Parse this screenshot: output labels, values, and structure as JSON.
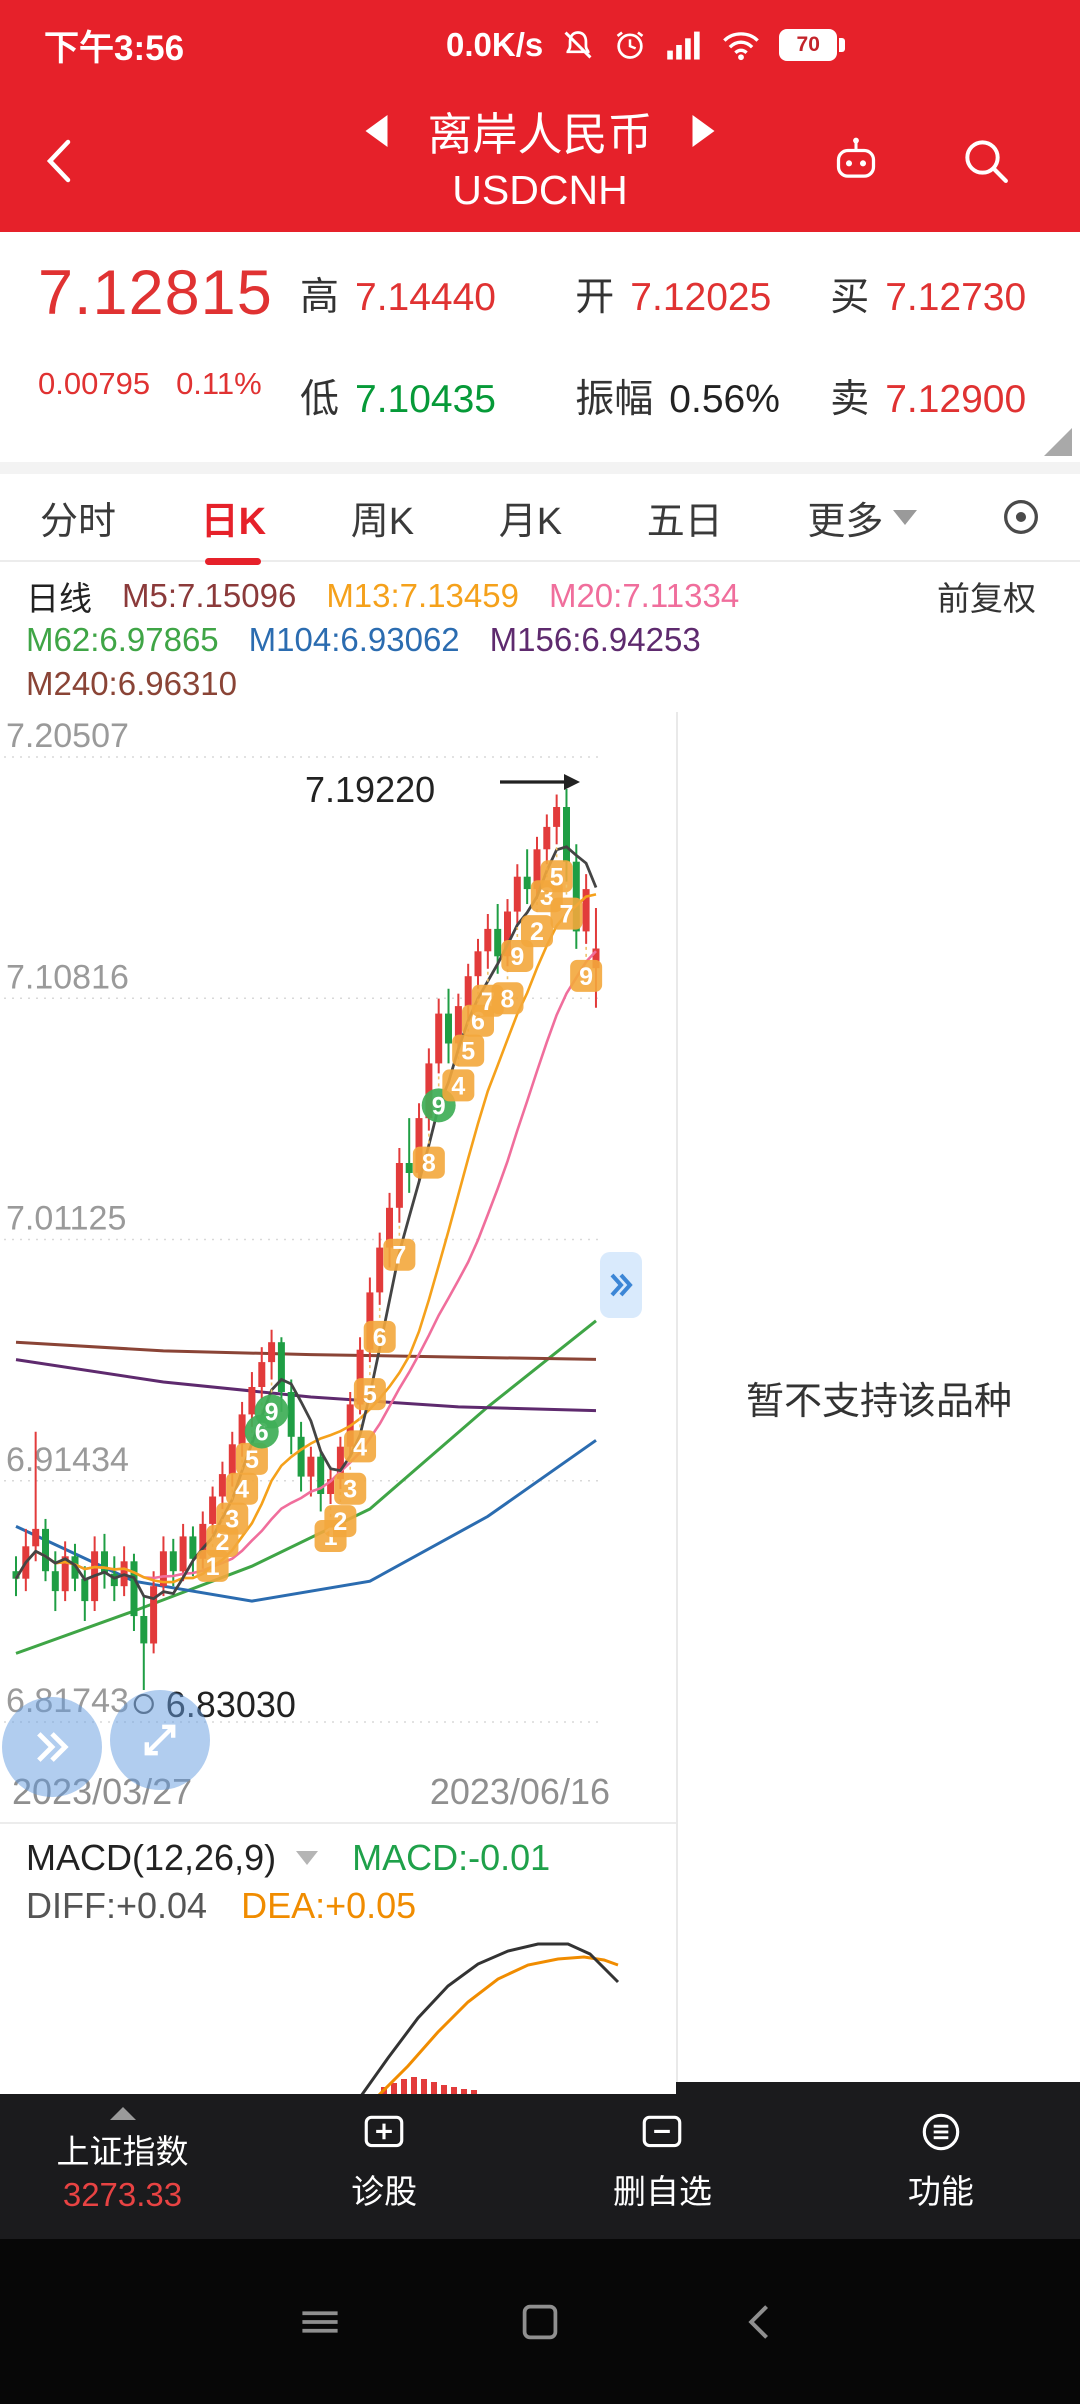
{
  "status_bar": {
    "time": "下午3:56",
    "net_speed": "0.0K/s",
    "battery_level": "70"
  },
  "header": {
    "title": "离岸人民币",
    "symbol": "USDCNH"
  },
  "quote": {
    "price": "7.12815",
    "change": "0.00795",
    "change_pct": "0.11%",
    "fields": [
      {
        "label": "高",
        "value": "7.14440",
        "color": "red"
      },
      {
        "label": "开",
        "value": "7.12025",
        "color": "red"
      },
      {
        "label": "买",
        "value": "7.12730",
        "color": "red"
      },
      {
        "label": "低",
        "value": "7.10435",
        "color": "green"
      },
      {
        "label": "振幅",
        "value": "0.56%",
        "color": "black"
      },
      {
        "label": "卖",
        "value": "7.12900",
        "color": "red"
      }
    ]
  },
  "tabs": {
    "items": [
      "分时",
      "日K",
      "周K",
      "月K",
      "五日",
      "更多"
    ],
    "active": "日K"
  },
  "indicators": {
    "period_label": "日线",
    "m5": "M5:7.15096",
    "m13": "M13:7.13459",
    "m20": "M20:7.11334",
    "adjust_label": "前复权",
    "m62": "M62:6.97865",
    "m104": "M104:6.93062",
    "m156": "M156:6.94253",
    "m240": "M240:6.96310"
  },
  "right_panel": {
    "message": "暂不支持该品种"
  },
  "chart_data": {
    "type": "candlestick",
    "symbol": "USDCNH",
    "period": "daily",
    "x_axis": {
      "start": "2023/03/27",
      "end": "2023/06/16"
    },
    "y_ticks": [
      7.20507,
      7.10816,
      7.01125,
      6.91434,
      6.81743
    ],
    "annotations": {
      "high_label": "7.19220",
      "low_label": "6.83030"
    },
    "colors": {
      "up": "#e23b3b",
      "down": "#1f9e44",
      "m5": "#444444",
      "m13": "#f5a11b",
      "m20": "#f06e9c"
    },
    "candles": [
      [
        6.878,
        6.884,
        6.868,
        6.875
      ],
      [
        6.875,
        6.895,
        6.87,
        6.888
      ],
      [
        6.888,
        6.934,
        6.882,
        6.895
      ],
      [
        6.895,
        6.899,
        6.874,
        6.878
      ],
      [
        6.878,
        6.886,
        6.862,
        6.87
      ],
      [
        6.87,
        6.89,
        6.866,
        6.884
      ],
      [
        6.884,
        6.889,
        6.87,
        6.875
      ],
      [
        6.875,
        6.88,
        6.858,
        6.866
      ],
      [
        6.866,
        6.892,
        6.862,
        6.886
      ],
      [
        6.886,
        6.893,
        6.871,
        6.877
      ],
      [
        6.877,
        6.884,
        6.866,
        6.872
      ],
      [
        6.872,
        6.888,
        6.868,
        6.882
      ],
      [
        6.882,
        6.885,
        6.854,
        6.86
      ],
      [
        6.86,
        6.868,
        6.8303,
        6.849
      ],
      [
        6.849,
        6.878,
        6.845,
        6.872
      ],
      [
        6.872,
        6.892,
        6.868,
        6.886
      ],
      [
        6.886,
        6.891,
        6.872,
        6.878
      ],
      [
        6.878,
        6.897,
        6.874,
        6.892
      ],
      [
        6.892,
        6.896,
        6.876,
        6.883
      ],
      [
        6.883,
        6.902,
        6.879,
        6.897
      ],
      [
        6.897,
        6.912,
        6.893,
        6.908
      ],
      [
        6.908,
        6.922,
        6.903,
        6.917
      ],
      [
        6.917,
        6.934,
        6.912,
        6.929
      ],
      [
        6.929,
        6.946,
        6.924,
        6.941
      ],
      [
        6.941,
        6.958,
        6.936,
        6.952
      ],
      [
        6.952,
        6.968,
        6.947,
        6.962
      ],
      [
        6.962,
        6.975,
        6.955,
        6.97
      ],
      [
        6.97,
        6.972,
        6.942,
        6.95
      ],
      [
        6.95,
        6.955,
        6.925,
        6.932
      ],
      [
        6.932,
        6.938,
        6.91,
        6.916
      ],
      [
        6.916,
        6.928,
        6.908,
        6.924
      ],
      [
        6.924,
        6.926,
        6.902,
        6.909
      ],
      [
        6.909,
        6.92,
        6.905,
        6.915
      ],
      [
        6.915,
        6.932,
        6.911,
        6.928
      ],
      [
        6.928,
        6.95,
        6.924,
        6.945
      ],
      [
        6.945,
        6.972,
        6.941,
        6.967
      ],
      [
        6.967,
        6.996,
        6.962,
        6.99
      ],
      [
        6.99,
        7.014,
        6.985,
        7.008
      ],
      [
        7.008,
        7.03,
        7.0,
        7.024
      ],
      [
        7.024,
        7.048,
        7.018,
        7.042
      ],
      [
        7.042,
        7.06,
        7.03,
        7.038
      ],
      [
        7.038,
        7.066,
        7.034,
        7.06
      ],
      [
        7.06,
        7.088,
        7.055,
        7.082
      ],
      [
        7.082,
        7.108,
        7.078,
        7.102
      ],
      [
        7.102,
        7.112,
        7.082,
        7.09
      ],
      [
        7.09,
        7.11,
        7.086,
        7.105
      ],
      [
        7.105,
        7.122,
        7.1,
        7.117
      ],
      [
        7.117,
        7.132,
        7.112,
        7.127
      ],
      [
        7.127,
        7.142,
        7.12,
        7.136
      ],
      [
        7.136,
        7.146,
        7.118,
        7.125
      ],
      [
        7.125,
        7.148,
        7.121,
        7.143
      ],
      [
        7.143,
        7.162,
        7.138,
        7.157
      ],
      [
        7.157,
        7.168,
        7.146,
        7.152
      ],
      [
        7.152,
        7.173,
        7.148,
        7.168
      ],
      [
        7.168,
        7.182,
        7.162,
        7.177
      ],
      [
        7.177,
        7.19,
        7.17,
        7.185
      ],
      [
        7.185,
        7.1922,
        7.155,
        7.163
      ],
      [
        7.163,
        7.17,
        7.128,
        7.135
      ],
      [
        7.135,
        7.158,
        7.13,
        7.152
      ],
      [
        7.12025,
        7.1444,
        7.10435,
        7.12815
      ]
    ],
    "ma_long": [
      {
        "name": "M62",
        "color": "#3fa546",
        "points": [
          [
            0,
            6.845
          ],
          [
            12,
            6.862
          ],
          [
            24,
            6.88
          ],
          [
            36,
            6.903
          ],
          [
            48,
            6.944
          ],
          [
            59,
            6.9786
          ]
        ]
      },
      {
        "name": "M104",
        "color": "#2b6cb0",
        "points": [
          [
            0,
            6.896
          ],
          [
            12,
            6.874
          ],
          [
            24,
            6.866
          ],
          [
            36,
            6.874
          ],
          [
            48,
            6.9
          ],
          [
            59,
            6.9306
          ]
        ]
      },
      {
        "name": "M156",
        "color": "#5e2a6e",
        "points": [
          [
            0,
            6.963
          ],
          [
            15,
            6.954
          ],
          [
            30,
            6.948
          ],
          [
            45,
            6.944
          ],
          [
            59,
            6.94253
          ]
        ]
      },
      {
        "name": "M240",
        "color": "#8a4436",
        "points": [
          [
            0,
            6.97
          ],
          [
            15,
            6.9665
          ],
          [
            30,
            6.965
          ],
          [
            45,
            6.964
          ],
          [
            59,
            6.9631
          ]
        ]
      }
    ],
    "badges": [
      [
        20,
        "1",
        "o"
      ],
      [
        21,
        "2",
        "o"
      ],
      [
        22,
        "3",
        "o"
      ],
      [
        23,
        "4",
        "o"
      ],
      [
        24,
        "5",
        "o"
      ],
      [
        25,
        "6",
        "g"
      ],
      [
        26,
        "9",
        "g"
      ],
      [
        32,
        "1",
        "o"
      ],
      [
        33,
        "2",
        "o"
      ],
      [
        34,
        "3",
        "o"
      ],
      [
        35,
        "4",
        "o"
      ],
      [
        36,
        "5",
        "o"
      ],
      [
        37,
        "6",
        "o"
      ],
      [
        39,
        "7",
        "o"
      ],
      [
        42,
        "8",
        "o"
      ],
      [
        43,
        "9",
        "g"
      ],
      [
        45,
        "4",
        "o"
      ],
      [
        46,
        "5",
        "o"
      ],
      [
        47,
        "6",
        "o"
      ],
      [
        48,
        "7",
        "o"
      ],
      [
        50,
        "8",
        "o"
      ],
      [
        51,
        "9",
        "o"
      ],
      [
        53,
        "2",
        "o"
      ],
      [
        54,
        "3",
        "o"
      ],
      [
        55,
        "5",
        "o"
      ],
      [
        56,
        "7",
        "o"
      ],
      [
        58,
        "9",
        "o"
      ]
    ],
    "macd": {
      "label": "MACD(12,26,9)",
      "macd_text": "MACD:-0.01",
      "diff_text": "DIFF:+0.04",
      "dea_text": "DEA:+0.05",
      "colors": {
        "diff": "#333333",
        "dea": "#f08c00",
        "hist": "#e23b3b"
      },
      "diff_points": [
        [
          335,
          162
        ],
        [
          362,
          124
        ],
        [
          392,
          84
        ],
        [
          422,
          52
        ],
        [
          452,
          30
        ],
        [
          482,
          17
        ],
        [
          512,
          10
        ],
        [
          542,
          10
        ],
        [
          564,
          20
        ],
        [
          592,
          48
        ]
      ],
      "dea_points": [
        [
          352,
          162
        ],
        [
          382,
          132
        ],
        [
          412,
          98
        ],
        [
          442,
          68
        ],
        [
          472,
          45
        ],
        [
          502,
          31
        ],
        [
          532,
          25
        ],
        [
          558,
          23
        ],
        [
          578,
          26
        ],
        [
          592,
          31
        ]
      ],
      "hist_bars": [
        [
          358,
          7
        ],
        [
          368,
          11
        ],
        [
          378,
          15
        ],
        [
          388,
          17
        ],
        [
          398,
          15
        ],
        [
          408,
          12
        ],
        [
          418,
          9
        ],
        [
          428,
          7
        ],
        [
          438,
          5
        ],
        [
          448,
          4
        ]
      ]
    }
  },
  "bottom_nav": {
    "index_name": "上证指数",
    "index_value": "3273.33",
    "items": [
      {
        "label": "诊股"
      },
      {
        "label": "删自选"
      },
      {
        "label": "功能"
      }
    ]
  }
}
